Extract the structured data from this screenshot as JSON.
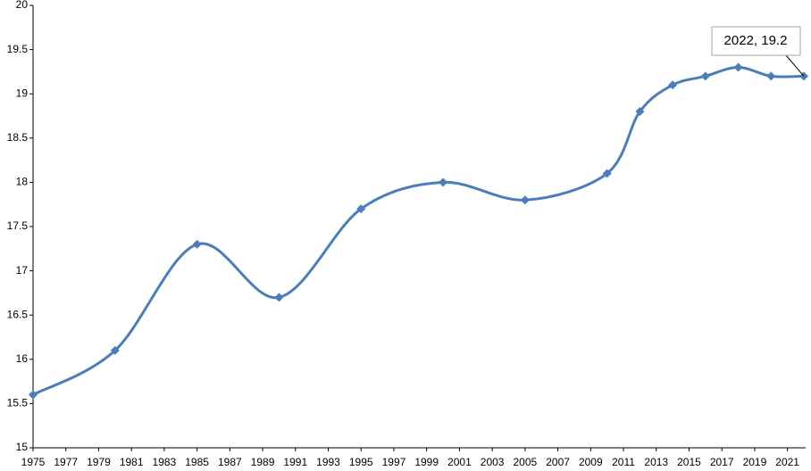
{
  "chart_data": {
    "type": "line",
    "x": [
      1975,
      1980,
      1985,
      1990,
      1995,
      2000,
      2005,
      2010,
      2012,
      2014,
      2016,
      2018,
      2020,
      2022
    ],
    "values": [
      15.6,
      16.1,
      17.3,
      16.7,
      17.7,
      18.0,
      17.8,
      18.1,
      18.8,
      19.1,
      19.2,
      19.3,
      19.2,
      19.2
    ],
    "color": "#4a7ebb",
    "xlim": [
      1975,
      2022
    ],
    "xticks": [
      1975,
      1977,
      1979,
      1981,
      1983,
      1985,
      1987,
      1989,
      1991,
      1993,
      1995,
      1997,
      1999,
      2001,
      2003,
      2005,
      2007,
      2009,
      2011,
      2013,
      2015,
      2017,
      2019,
      2021
    ],
    "ylim": [
      15,
      20
    ],
    "yticks": [
      15,
      15.5,
      16,
      16.5,
      17,
      17.5,
      18,
      18.5,
      19,
      19.5,
      20
    ],
    "annotation": "2022, 19.2"
  }
}
